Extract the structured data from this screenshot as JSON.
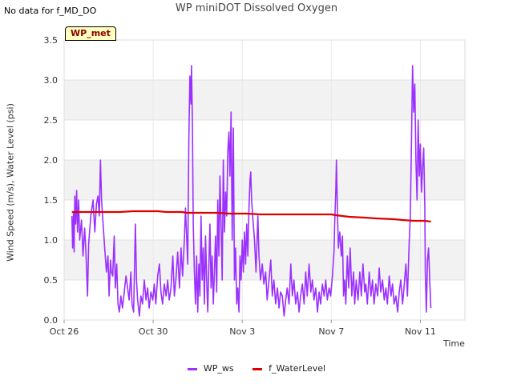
{
  "header": {
    "nodata_text": "No data for f_MD_DO"
  },
  "chart_data": {
    "type": "line",
    "title": "WP miniDOT Dissolved Oxygen",
    "station_label": "WP_met",
    "xlabel": "Time",
    "ylabel": "Wind Speed (m/s), Water Level (psi)",
    "ylim": [
      0,
      3.5
    ],
    "yticks": [
      0.0,
      0.5,
      1.0,
      1.5,
      2.0,
      2.5,
      3.0,
      3.5
    ],
    "ytick_labels": [
      "0.0",
      "0.5",
      "1.0",
      "1.5",
      "2.0",
      "2.5",
      "3.0",
      "3.5"
    ],
    "xlim_days": [
      0,
      18
    ],
    "xticks_days": [
      0,
      4,
      8,
      12,
      16
    ],
    "xtick_labels": [
      "Oct 26",
      "Oct 30",
      "Nov 3",
      "Nov 7",
      "Nov 11"
    ],
    "background_bands": "alternating grey every 0.5",
    "series": [
      {
        "name": "WP_ws",
        "color": "#9b30ff",
        "points": [
          [
            0.35,
            1.3
          ],
          [
            0.38,
            0.9
          ],
          [
            0.42,
            1.35
          ],
          [
            0.45,
            0.85
          ],
          [
            0.48,
            1.55
          ],
          [
            0.52,
            1.2
          ],
          [
            0.56,
            1.62
          ],
          [
            0.6,
            1.1
          ],
          [
            0.65,
            1.5
          ],
          [
            0.7,
            1.0
          ],
          [
            0.78,
            1.25
          ],
          [
            0.85,
            0.8
          ],
          [
            0.92,
            1.15
          ],
          [
            0.98,
            0.85
          ],
          [
            1.05,
            0.3
          ],
          [
            1.1,
            0.95
          ],
          [
            1.2,
            1.3
          ],
          [
            1.3,
            1.5
          ],
          [
            1.38,
            1.1
          ],
          [
            1.45,
            1.45
          ],
          [
            1.52,
            1.55
          ],
          [
            1.58,
            1.3
          ],
          [
            1.63,
            2.0
          ],
          [
            1.68,
            1.5
          ],
          [
            1.75,
            1.2
          ],
          [
            1.82,
            0.9
          ],
          [
            1.9,
            0.6
          ],
          [
            1.97,
            0.8
          ],
          [
            2.02,
            0.3
          ],
          [
            2.08,
            0.75
          ],
          [
            2.12,
            0.6
          ],
          [
            2.18,
            0.55
          ],
          [
            2.25,
            1.05
          ],
          [
            2.3,
            0.4
          ],
          [
            2.36,
            0.7
          ],
          [
            2.42,
            0.2
          ],
          [
            2.48,
            0.1
          ],
          [
            2.55,
            0.3
          ],
          [
            2.62,
            0.15
          ],
          [
            2.7,
            0.35
          ],
          [
            2.78,
            0.55
          ],
          [
            2.85,
            0.4
          ],
          [
            2.92,
            0.25
          ],
          [
            3.0,
            0.6
          ],
          [
            3.05,
            0.2
          ],
          [
            3.12,
            0.1
          ],
          [
            3.2,
            1.2
          ],
          [
            3.25,
            0.5
          ],
          [
            3.3,
            0.25
          ],
          [
            3.38,
            0.05
          ],
          [
            3.45,
            0.3
          ],
          [
            3.52,
            0.2
          ],
          [
            3.6,
            0.5
          ],
          [
            3.68,
            0.25
          ],
          [
            3.75,
            0.4
          ],
          [
            3.82,
            0.15
          ],
          [
            3.9,
            0.35
          ],
          [
            3.98,
            0.25
          ],
          [
            4.05,
            0.45
          ],
          [
            4.12,
            0.2
          ],
          [
            4.2,
            0.55
          ],
          [
            4.28,
            0.7
          ],
          [
            4.35,
            0.35
          ],
          [
            4.42,
            0.2
          ],
          [
            4.5,
            0.45
          ],
          [
            4.58,
            0.3
          ],
          [
            4.65,
            0.5
          ],
          [
            4.72,
            0.25
          ],
          [
            4.8,
            0.4
          ],
          [
            4.88,
            0.8
          ],
          [
            4.95,
            0.3
          ],
          [
            5.02,
            0.5
          ],
          [
            5.1,
            0.85
          ],
          [
            5.18,
            0.4
          ],
          [
            5.25,
            0.9
          ],
          [
            5.32,
            0.55
          ],
          [
            5.4,
            1.0
          ],
          [
            5.45,
            1.4
          ],
          [
            5.5,
            1.05
          ],
          [
            5.55,
            0.7
          ],
          [
            5.6,
            2.25
          ],
          [
            5.65,
            3.05
          ],
          [
            5.7,
            2.7
          ],
          [
            5.72,
            3.18
          ],
          [
            5.76,
            2.5
          ],
          [
            5.8,
            1.2
          ],
          [
            5.85,
            0.6
          ],
          [
            5.9,
            0.2
          ],
          [
            5.95,
            0.8
          ],
          [
            6.0,
            0.1
          ],
          [
            6.05,
            0.7
          ],
          [
            6.1,
            0.3
          ],
          [
            6.15,
            1.3
          ],
          [
            6.2,
            0.5
          ],
          [
            6.25,
            0.9
          ],
          [
            6.3,
            0.2
          ],
          [
            6.35,
            1.05
          ],
          [
            6.4,
            0.5
          ],
          [
            6.45,
            0.1
          ],
          [
            6.5,
            0.7
          ],
          [
            6.55,
            1.2
          ],
          [
            6.6,
            0.4
          ],
          [
            6.65,
            0.8
          ],
          [
            6.7,
            0.2
          ],
          [
            6.75,
            0.6
          ],
          [
            6.8,
            1.05
          ],
          [
            6.85,
            0.35
          ],
          [
            6.9,
            1.5
          ],
          [
            6.95,
            0.8
          ],
          [
            7.0,
            1.8
          ],
          [
            7.05,
            1.2
          ],
          [
            7.1,
            0.5
          ],
          [
            7.15,
            2.0
          ],
          [
            7.2,
            1.1
          ],
          [
            7.25,
            1.6
          ],
          [
            7.3,
            1.3
          ],
          [
            7.35,
            2.1
          ],
          [
            7.4,
            2.35
          ],
          [
            7.45,
            1.8
          ],
          [
            7.5,
            2.6
          ],
          [
            7.55,
            1.0
          ],
          [
            7.6,
            2.4
          ],
          [
            7.65,
            0.5
          ],
          [
            7.7,
            0.9
          ],
          [
            7.75,
            0.2
          ],
          [
            7.8,
            0.4
          ],
          [
            7.85,
            0.1
          ],
          [
            7.9,
            0.8
          ],
          [
            7.95,
            0.5
          ],
          [
            8.0,
            1.0
          ],
          [
            8.05,
            0.6
          ],
          [
            8.1,
            1.1
          ],
          [
            8.15,
            0.7
          ],
          [
            8.2,
            1.2
          ],
          [
            8.25,
            0.8
          ],
          [
            8.3,
            1.4
          ],
          [
            8.35,
            1.75
          ],
          [
            8.38,
            1.85
          ],
          [
            8.42,
            1.5
          ],
          [
            8.48,
            1.25
          ],
          [
            8.55,
            1.0
          ],
          [
            8.62,
            0.6
          ],
          [
            8.7,
            1.3
          ],
          [
            8.75,
            0.8
          ],
          [
            8.82,
            0.5
          ],
          [
            8.9,
            0.7
          ],
          [
            8.97,
            0.45
          ],
          [
            9.05,
            0.6
          ],
          [
            9.12,
            0.25
          ],
          [
            9.2,
            0.5
          ],
          [
            9.28,
            0.75
          ],
          [
            9.35,
            0.3
          ],
          [
            9.42,
            0.5
          ],
          [
            9.5,
            0.2
          ],
          [
            9.58,
            0.4
          ],
          [
            9.65,
            0.15
          ],
          [
            9.72,
            0.35
          ],
          [
            9.8,
            0.3
          ],
          [
            9.88,
            0.05
          ],
          [
            9.95,
            0.25
          ],
          [
            10.02,
            0.4
          ],
          [
            10.1,
            0.2
          ],
          [
            10.18,
            0.7
          ],
          [
            10.25,
            0.3
          ],
          [
            10.32,
            0.5
          ],
          [
            10.4,
            0.2
          ],
          [
            10.48,
            0.35
          ],
          [
            10.55,
            0.1
          ],
          [
            10.62,
            0.3
          ],
          [
            10.7,
            0.45
          ],
          [
            10.78,
            0.2
          ],
          [
            10.85,
            0.6
          ],
          [
            10.92,
            0.3
          ],
          [
            11.0,
            0.7
          ],
          [
            11.08,
            0.35
          ],
          [
            11.15,
            0.5
          ],
          [
            11.22,
            0.25
          ],
          [
            11.3,
            0.4
          ],
          [
            11.38,
            0.1
          ],
          [
            11.45,
            0.35
          ],
          [
            11.52,
            0.2
          ],
          [
            11.6,
            0.45
          ],
          [
            11.68,
            0.3
          ],
          [
            11.75,
            0.5
          ],
          [
            11.82,
            0.25
          ],
          [
            11.9,
            0.4
          ],
          [
            11.97,
            0.3
          ],
          [
            12.05,
            0.55
          ],
          [
            12.12,
            0.85
          ],
          [
            12.15,
            1.2
          ],
          [
            12.2,
            1.6
          ],
          [
            12.23,
            2.0
          ],
          [
            12.28,
            1.3
          ],
          [
            12.32,
            0.9
          ],
          [
            12.38,
            1.1
          ],
          [
            12.45,
            0.8
          ],
          [
            12.5,
            1.05
          ],
          [
            12.55,
            0.3
          ],
          [
            12.6,
            0.5
          ],
          [
            12.65,
            0.2
          ],
          [
            12.72,
            0.8
          ],
          [
            12.78,
            0.4
          ],
          [
            12.85,
            0.9
          ],
          [
            12.92,
            0.3
          ],
          [
            13.0,
            0.6
          ],
          [
            13.05,
            0.2
          ],
          [
            13.12,
            0.5
          ],
          [
            13.2,
            0.25
          ],
          [
            13.28,
            0.6
          ],
          [
            13.35,
            0.3
          ],
          [
            13.42,
            0.7
          ],
          [
            13.5,
            0.35
          ],
          [
            13.55,
            0.45
          ],
          [
            13.62,
            0.2
          ],
          [
            13.7,
            0.6
          ],
          [
            13.78,
            0.3
          ],
          [
            13.85,
            0.5
          ],
          [
            13.92,
            0.2
          ],
          [
            14.0,
            0.45
          ],
          [
            14.08,
            0.3
          ],
          [
            14.15,
            0.65
          ],
          [
            14.22,
            0.35
          ],
          [
            14.3,
            0.5
          ],
          [
            14.38,
            0.25
          ],
          [
            14.45,
            0.4
          ],
          [
            14.52,
            0.2
          ],
          [
            14.6,
            0.55
          ],
          [
            14.68,
            0.3
          ],
          [
            14.75,
            0.45
          ],
          [
            14.82,
            0.2
          ],
          [
            14.9,
            0.3
          ],
          [
            14.98,
            0.1
          ],
          [
            15.05,
            0.35
          ],
          [
            15.12,
            0.5
          ],
          [
            15.2,
            0.2
          ],
          [
            15.28,
            0.45
          ],
          [
            15.35,
            0.7
          ],
          [
            15.42,
            0.3
          ],
          [
            15.5,
            1.0
          ],
          [
            15.55,
            1.3
          ],
          [
            15.6,
            2.2
          ],
          [
            15.65,
            3.18
          ],
          [
            15.7,
            2.6
          ],
          [
            15.75,
            2.95
          ],
          [
            15.8,
            2.0
          ],
          [
            15.85,
            1.5
          ],
          [
            15.9,
            2.5
          ],
          [
            15.95,
            1.8
          ],
          [
            16.0,
            2.2
          ],
          [
            16.05,
            1.6
          ],
          [
            16.1,
            1.9
          ],
          [
            16.15,
            2.15
          ],
          [
            16.2,
            1.4
          ],
          [
            16.22,
            0.6
          ],
          [
            16.27,
            0.1
          ],
          [
            16.32,
            0.75
          ],
          [
            16.37,
            0.9
          ],
          [
            16.42,
            0.5
          ],
          [
            16.47,
            0.15
          ]
        ]
      },
      {
        "name": "f_WaterLevel",
        "color": "#dd0000",
        "points": [
          [
            0.35,
            1.35
          ],
          [
            1.5,
            1.35
          ],
          [
            2.5,
            1.35
          ],
          [
            3.1,
            1.36
          ],
          [
            4.2,
            1.36
          ],
          [
            4.6,
            1.35
          ],
          [
            5.3,
            1.35
          ],
          [
            5.5,
            1.34
          ],
          [
            6.3,
            1.34
          ],
          [
            6.9,
            1.34
          ],
          [
            7.4,
            1.33
          ],
          [
            8.0,
            1.33
          ],
          [
            8.2,
            1.33
          ],
          [
            8.8,
            1.32
          ],
          [
            9.5,
            1.32
          ],
          [
            10.5,
            1.32
          ],
          [
            11.5,
            1.32
          ],
          [
            12.0,
            1.32
          ],
          [
            12.2,
            1.31
          ],
          [
            12.8,
            1.29
          ],
          [
            13.5,
            1.28
          ],
          [
            14.0,
            1.27
          ],
          [
            14.8,
            1.26
          ],
          [
            15.2,
            1.25
          ],
          [
            15.7,
            1.24
          ],
          [
            16.2,
            1.24
          ],
          [
            16.47,
            1.23
          ]
        ]
      }
    ]
  }
}
